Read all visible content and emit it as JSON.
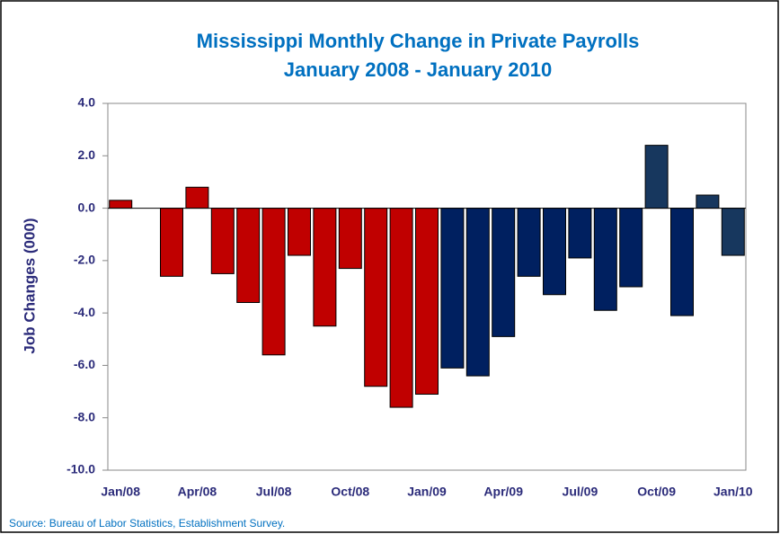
{
  "chart_data": {
    "type": "bar",
    "title": "Mississippi Monthly Change in Private Payrolls",
    "subtitle": "January 2008 - January 2010",
    "y_label": "Job Changes (000)",
    "source": "Source: Bureau of Labor Statistics, Establishment Survey.",
    "categories": [
      "Jan/08",
      null,
      null,
      "Apr/08",
      null,
      null,
      "Jul/08",
      null,
      null,
      "Oct/08",
      null,
      null,
      "Jan/09",
      null,
      null,
      "Apr/09",
      null,
      null,
      "Jul/09",
      null,
      null,
      "Oct/09",
      null,
      null,
      "Jan/10"
    ],
    "values": [
      0.3,
      0,
      -2.6,
      0.8,
      -2.5,
      -3.6,
      -5.6,
      -1.8,
      -4.5,
      -2.3,
      -6.8,
      -7.6,
      -7.1,
      -6.1,
      -6.4,
      -4.9,
      -2.6,
      -3.3,
      -1.9,
      -3.9,
      -3.0,
      2.4,
      -4.1,
      0.5,
      -1.8
    ],
    "colors": [
      "#c00000",
      "#c00000",
      "#c00000",
      "#c00000",
      "#c00000",
      "#c00000",
      "#c00000",
      "#c00000",
      "#c00000",
      "#c00000",
      "#c00000",
      "#c00000",
      "#c00000",
      "#002060",
      "#002060",
      "#002060",
      "#002060",
      "#002060",
      "#002060",
      "#002060",
      "#002060",
      "#17375e",
      "#002060",
      "#17375e",
      "#17375e"
    ],
    "ylim": [
      -10,
      4
    ],
    "yticks": [
      {
        "value": -10,
        "label": "-10.0"
      },
      {
        "value": -8,
        "label": "-8.0"
      },
      {
        "value": -6,
        "label": "-6.0"
      },
      {
        "value": -4,
        "label": "-4.0"
      },
      {
        "value": -2,
        "label": "-2.0"
      },
      {
        "value": 0,
        "label": "0.0"
      },
      {
        "value": 2,
        "label": "2.0"
      },
      {
        "value": 4,
        "label": "4.0"
      }
    ],
    "grid": false
  }
}
